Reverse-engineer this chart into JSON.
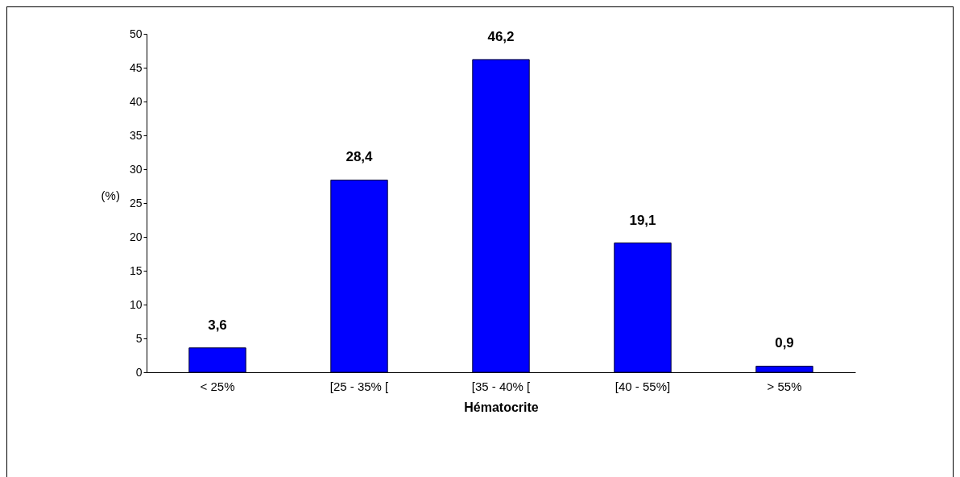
{
  "chart_data": {
    "type": "bar",
    "xlabel": "Hématocrite",
    "ylabel": "(%)",
    "categories": [
      "< 25%",
      "[25 - 35% [",
      "[35 - 40% [",
      "[40 - 55%]",
      "> 55%"
    ],
    "values": [
      3.6,
      28.4,
      46.2,
      19.1,
      0.9
    ],
    "value_labels": [
      "3,6",
      "28,4",
      "46,2",
      "19,1",
      "0,9"
    ],
    "color": "#0000ff",
    "ylim": [
      0,
      50
    ],
    "yticks": [
      0,
      5,
      10,
      15,
      20,
      25,
      30,
      35,
      40,
      45,
      50
    ],
    "grid": false
  }
}
